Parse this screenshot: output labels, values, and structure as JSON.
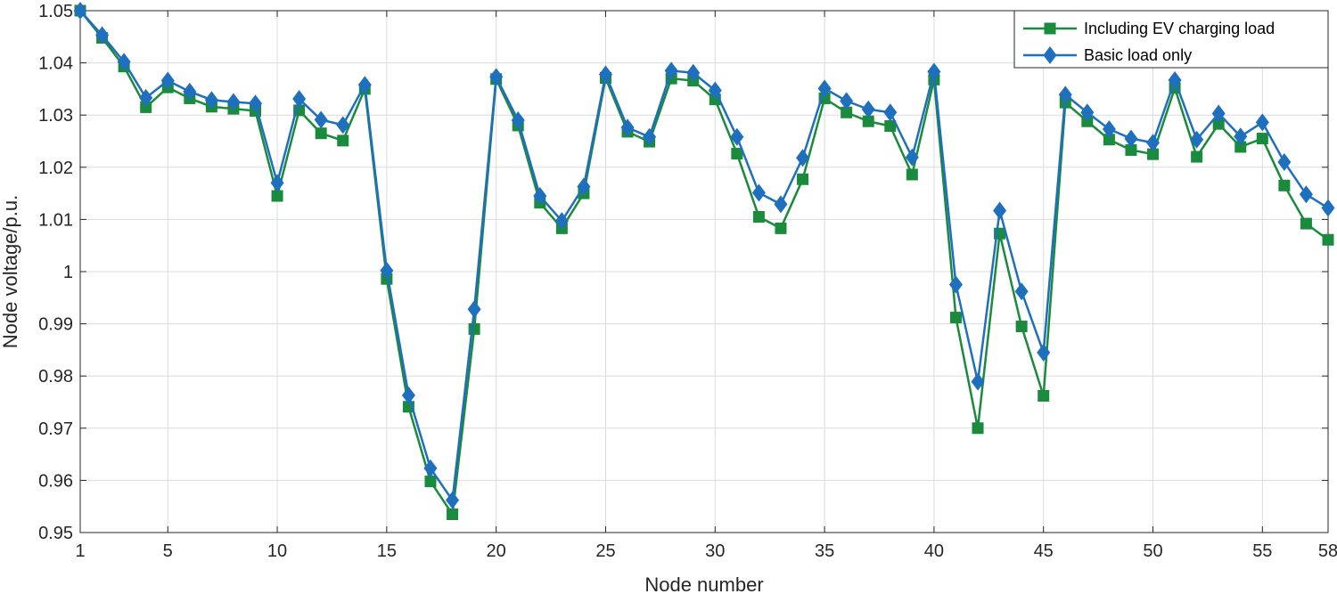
{
  "chart_data": {
    "type": "line",
    "title": "",
    "xlabel": "Node number",
    "ylabel": "Node voltage/p.u.",
    "xlim": [
      1,
      58
    ],
    "ylim": [
      0.95,
      1.05
    ],
    "x_ticks": [
      1,
      5,
      10,
      15,
      20,
      25,
      30,
      35,
      40,
      45,
      50,
      55,
      58
    ],
    "y_ticks": [
      0.95,
      0.96,
      0.97,
      0.98,
      0.99,
      1,
      1.01,
      1.02,
      1.03,
      1.04,
      1.05
    ],
    "x_tick_labels": [
      "1",
      "5",
      "10",
      "15",
      "20",
      "25",
      "30",
      "35",
      "40",
      "45",
      "50",
      "55",
      "58"
    ],
    "y_tick_labels": [
      "0.95",
      "0.96",
      "0.97",
      "0.98",
      "0.99",
      "1",
      "1.01",
      "1.02",
      "1.03",
      "1.04",
      "1.05"
    ],
    "grid": true,
    "legend_position": "top-right",
    "x": [
      1,
      2,
      3,
      4,
      5,
      6,
      7,
      8,
      9,
      10,
      11,
      12,
      13,
      14,
      15,
      16,
      17,
      18,
      19,
      20,
      21,
      22,
      23,
      24,
      25,
      26,
      27,
      28,
      29,
      30,
      31,
      32,
      33,
      34,
      35,
      36,
      37,
      38,
      39,
      40,
      41,
      42,
      43,
      44,
      45,
      46,
      47,
      48,
      49,
      50,
      51,
      52,
      53,
      54,
      55,
      56,
      57,
      58
    ],
    "series": [
      {
        "name": "Including EV charging load",
        "color": "#1a8a3c",
        "marker": "square",
        "values": [
          1.05,
          1.0448,
          1.0393,
          1.0315,
          1.0353,
          1.0332,
          1.0316,
          1.0312,
          1.0308,
          1.0145,
          1.0309,
          1.0265,
          1.0251,
          1.035,
          0.9986,
          0.9741,
          0.9598,
          0.9535,
          0.989,
          1.0369,
          1.028,
          1.0132,
          1.0083,
          1.015,
          1.0371,
          1.0268,
          1.0249,
          1.037,
          1.0366,
          1.033,
          1.0226,
          1.0105,
          1.0083,
          1.0177,
          1.0332,
          1.0305,
          1.0288,
          1.0279,
          1.0186,
          1.0368,
          0.9912,
          0.97,
          1.0073,
          0.9895,
          0.9762,
          1.0324,
          1.0288,
          1.0253,
          1.0233,
          1.0225,
          1.0352,
          1.022,
          1.0283,
          1.0239,
          1.0255,
          1.0165,
          1.0092,
          1.0061
        ]
      },
      {
        "name": "Basic load only",
        "color": "#1f6fbf",
        "marker": "diamond",
        "values": [
          1.05,
          1.0453,
          1.0402,
          1.0333,
          1.0366,
          1.0345,
          1.0329,
          1.0325,
          1.0322,
          1.017,
          1.0331,
          1.0291,
          1.0281,
          1.0358,
          1.0002,
          0.9763,
          0.9623,
          0.9562,
          0.9928,
          1.0373,
          1.029,
          1.0145,
          1.0097,
          1.0163,
          1.0378,
          1.0276,
          1.0258,
          1.0385,
          1.0381,
          1.0347,
          1.0258,
          1.0151,
          1.0129,
          1.0218,
          1.0351,
          1.0327,
          1.0311,
          1.0305,
          1.0219,
          1.0383,
          0.9975,
          0.9789,
          1.0117,
          0.9962,
          0.9845,
          1.0339,
          1.0305,
          1.0273,
          1.0255,
          1.0247,
          1.0367,
          1.0253,
          1.0303,
          1.0259,
          1.0286,
          1.021,
          1.0148,
          1.0122
        ]
      }
    ]
  }
}
